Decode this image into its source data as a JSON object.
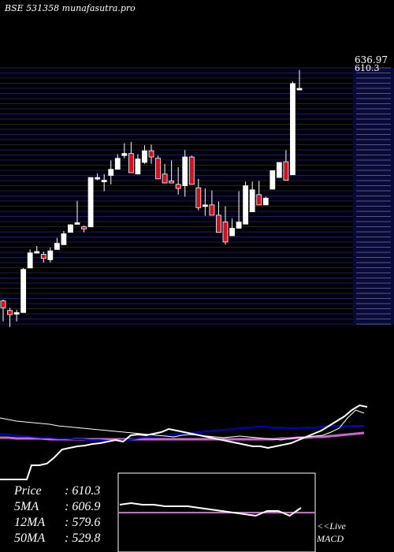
{
  "header": {
    "title": "BSE 531358  munafasutra.pro"
  },
  "price_labels": {
    "top": "636.97",
    "second": "610.3"
  },
  "stats": [
    {
      "label": "Price",
      "value": "610.3"
    },
    {
      "label": "5MA",
      "value": "606.9"
    },
    {
      "label": "12MA",
      "value": "579.6"
    },
    {
      "label": "50MA",
      "value": "529.8"
    }
  ],
  "macd": {
    "line1": "<<Live",
    "line2": "MACD"
  },
  "colors": {
    "background": "#000000",
    "grid": "#1a1a66",
    "up": "#ffffff",
    "down": "#cc1122",
    "ma12": "#0000cc",
    "ma50": "#cc66cc"
  },
  "chart_data": {
    "type": "candlestick",
    "candles": [
      [
        300,
        302,
        270,
        290
      ],
      [
        286,
        290,
        262,
        280
      ],
      [
        283,
        287,
        270,
        283
      ],
      [
        283,
        348,
        340,
        346
      ],
      [
        348,
        375,
        358,
        370
      ],
      [
        372,
        380,
        374,
        372
      ],
      [
        368,
        372,
        356,
        362
      ],
      [
        360,
        378,
        356,
        373
      ],
      [
        375,
        392,
        378,
        384
      ],
      [
        382,
        402,
        390,
        398
      ],
      [
        400,
        412,
        402,
        411
      ],
      [
        412,
        446,
        413,
        414
      ],
      [
        408,
        410,
        400,
        405
      ],
      [
        408,
        480,
        450,
        480
      ],
      [
        480,
        486,
        476,
        480
      ],
      [
        476,
        485,
        460,
        476
      ],
      [
        483,
        505,
        470,
        492
      ],
      [
        492,
        514,
        496,
        508
      ],
      [
        512,
        530,
        508,
        515
      ],
      [
        515,
        532,
        488,
        487
      ],
      [
        485,
        514,
        490,
        507
      ],
      [
        502,
        527,
        500,
        519
      ],
      [
        519,
        528,
        500,
        510
      ],
      [
        508,
        512,
        484,
        478
      ],
      [
        485,
        500,
        478,
        472
      ],
      [
        475,
        505,
        480,
        472
      ],
      [
        470,
        495,
        455,
        464
      ],
      [
        468,
        520,
        452,
        510
      ],
      [
        510,
        512,
        470,
        470
      ],
      [
        465,
        478,
        432,
        436
      ],
      [
        440,
        464,
        424,
        440
      ],
      [
        440,
        461,
        432,
        425
      ],
      [
        425,
        445,
        418,
        400
      ],
      [
        415,
        438,
        382,
        386
      ],
      [
        395,
        420,
        400,
        406
      ],
      [
        406,
        460,
        406,
        415
      ],
      [
        412,
        474,
        436,
        468
      ],
      [
        430,
        474,
        452,
        462
      ],
      [
        455,
        475,
        448,
        440
      ],
      [
        440,
        452,
        456,
        450
      ],
      [
        463,
        483,
        465,
        490
      ],
      [
        480,
        496,
        498,
        502
      ],
      [
        503,
        520,
        484,
        476
      ],
      [
        484,
        620,
        610,
        617
      ],
      [
        610,
        637,
        618,
        610
      ]
    ],
    "price_axis": [
      636.97,
      610.3
    ],
    "indicator": {
      "ma5_line": [
        30,
        28,
        26,
        25,
        24,
        23,
        22,
        20,
        19,
        18,
        17,
        16,
        15,
        14,
        13,
        12,
        11,
        10,
        9,
        8,
        7,
        6,
        8,
        9,
        8,
        7,
        6,
        5,
        6,
        7,
        6,
        5,
        4,
        3,
        2,
        4,
        5,
        6,
        7,
        8,
        12,
        17,
        30,
        40,
        36
      ],
      "ma12_line": [
        10,
        9,
        8,
        7,
        6,
        5,
        5,
        4,
        4,
        3,
        3,
        2,
        2,
        1,
        1,
        2,
        3,
        5,
        6,
        7,
        8,
        9,
        10,
        11,
        12,
        13,
        14,
        15,
        16,
        17,
        18,
        19,
        19,
        18,
        18,
        17,
        17,
        18,
        18,
        19,
        20,
        20,
        20,
        20,
        20
      ],
      "ma50_line": [
        5,
        5,
        4,
        4,
        4,
        4,
        3,
        3,
        3,
        3,
        3,
        3,
        3,
        3,
        3,
        3,
        3,
        3,
        3,
        3,
        3,
        3,
        3,
        3,
        3,
        3,
        3,
        3,
        3,
        3,
        3,
        3,
        3,
        3,
        4,
        4,
        5,
        5,
        6,
        6,
        7,
        8,
        9,
        10,
        11
      ],
      "price_line": [
        -30,
        -30,
        -28,
        -20,
        -10,
        -8,
        -6,
        -5,
        -3,
        -2,
        0,
        2,
        0,
        8,
        9,
        8,
        10,
        12,
        16,
        14,
        12,
        10,
        8,
        6,
        4,
        2,
        0,
        -2,
        -4,
        -6,
        -6,
        -8,
        -6,
        -4,
        -2,
        2,
        6,
        10,
        14,
        20,
        26,
        32,
        40,
        46,
        44
      ]
    },
    "macd_box": {
      "macd_line": [
        4,
        5,
        4,
        4,
        3,
        3,
        3,
        2,
        1,
        0,
        -1,
        -2,
        -3,
        0,
        0,
        -3,
        2
      ],
      "signal_line": 0
    }
  }
}
